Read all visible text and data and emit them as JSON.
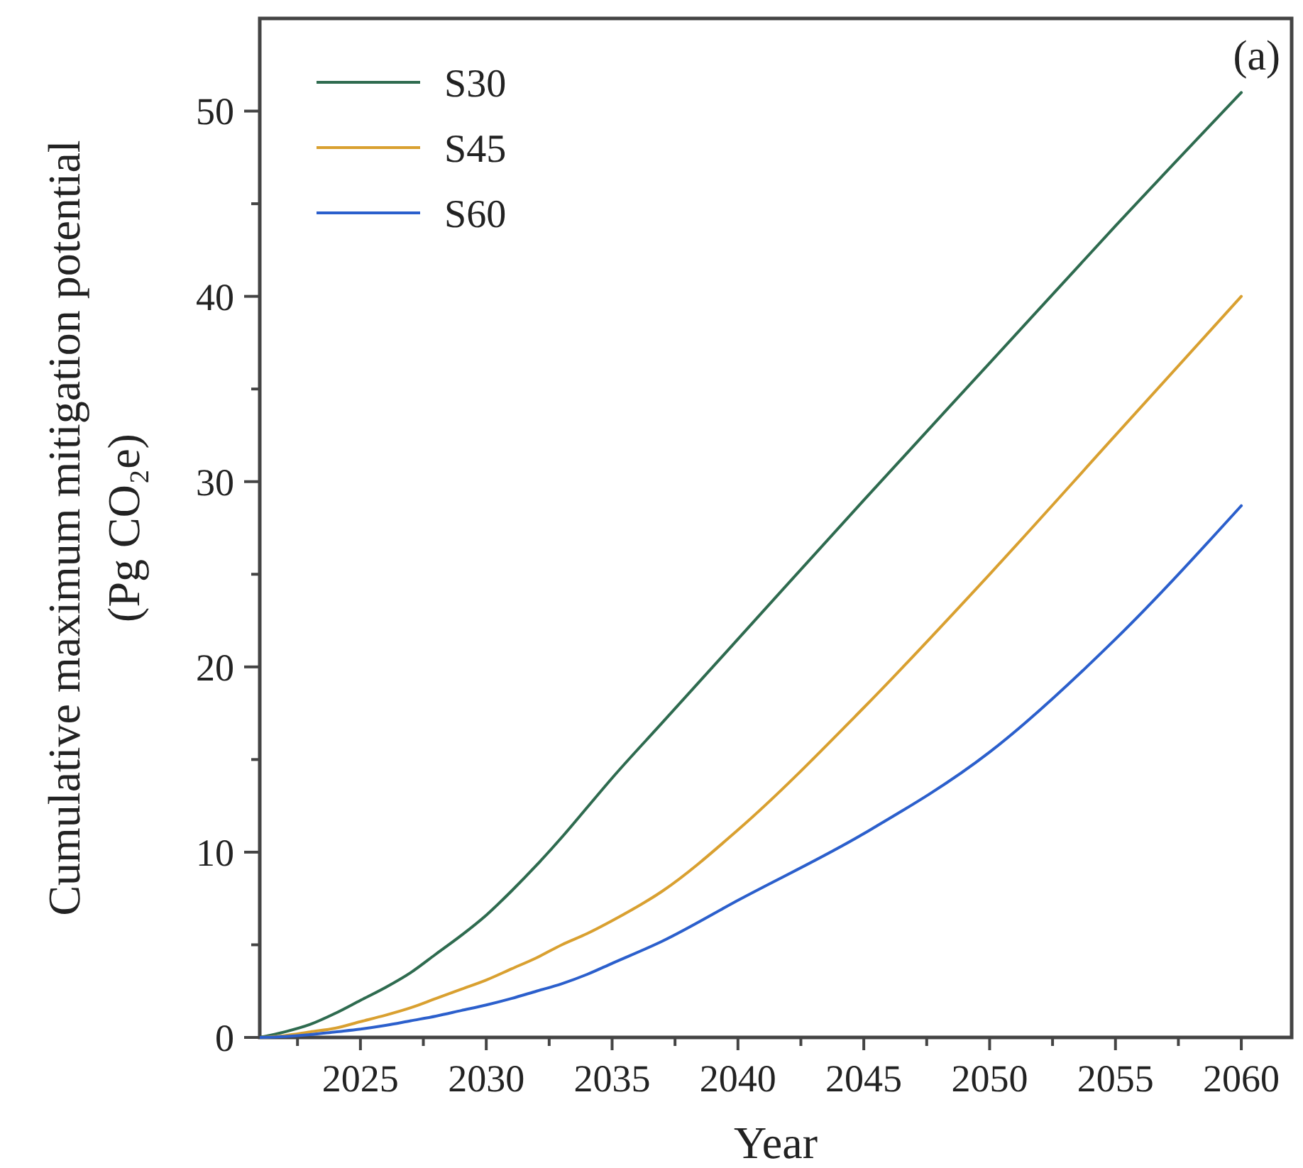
{
  "chart_data": {
    "type": "line",
    "xlabel": "Year",
    "ylabel": "Cumulative maximum mitigation potential\n(Pg CO₂e)",
    "annotations": [
      "(a)"
    ],
    "x": [
      2021,
      2022,
      2023,
      2024,
      2025,
      2026,
      2027,
      2028,
      2029,
      2030,
      2031,
      2032,
      2033,
      2034,
      2035,
      2037,
      2040,
      2045,
      2050,
      2055,
      2060
    ],
    "series": [
      {
        "name": "S30",
        "color": "#2e6b4f",
        "values": [
          0,
          0.3,
          0.7,
          1.3,
          2.0,
          2.7,
          3.5,
          4.5,
          5.5,
          6.6,
          7.9,
          9.3,
          10.8,
          12.4,
          14.0,
          17.0,
          21.5,
          29.0,
          36.4,
          43.8,
          51.0
        ]
      },
      {
        "name": "S45",
        "color": "#d9a030",
        "values": [
          0,
          0.1,
          0.3,
          0.5,
          0.85,
          1.2,
          1.6,
          2.1,
          2.6,
          3.1,
          3.7,
          4.3,
          5.0,
          5.6,
          6.3,
          7.9,
          11.2,
          17.8,
          25.0,
          32.5,
          40.0
        ]
      },
      {
        "name": "S60",
        "color": "#2b5fcc",
        "values": [
          0,
          0.05,
          0.15,
          0.3,
          0.45,
          0.65,
          0.9,
          1.15,
          1.45,
          1.75,
          2.1,
          2.5,
          2.9,
          3.4,
          4.0,
          5.2,
          7.4,
          11.0,
          15.4,
          21.5,
          28.7
        ]
      }
    ],
    "xlim": [
      2021,
      2062
    ],
    "xticks": [
      {
        "value": 2022.5,
        "label": null
      },
      2025,
      {
        "value": 2027.5,
        "label": null
      },
      2030,
      {
        "value": 2032.5,
        "label": null
      },
      2035,
      {
        "value": 2037.5,
        "label": null
      },
      2040,
      {
        "value": 2042.5,
        "label": null
      },
      2045,
      {
        "value": 2047.5,
        "label": null
      },
      2050,
      {
        "value": 2052.5,
        "label": null
      },
      2055,
      {
        "value": 2057.5,
        "label": null
      },
      2060
    ],
    "ylim": [
      0,
      55
    ],
    "yticks": [
      0,
      {
        "value": 5,
        "label": null
      },
      10,
      {
        "value": 15,
        "label": null
      },
      20,
      {
        "value": 25,
        "label": null
      },
      30,
      {
        "value": 35,
        "label": null
      },
      40,
      {
        "value": 45,
        "label": null
      },
      50
    ],
    "legend": "top left",
    "grid": false,
    "marker": "none",
    "line_style": "solid"
  }
}
